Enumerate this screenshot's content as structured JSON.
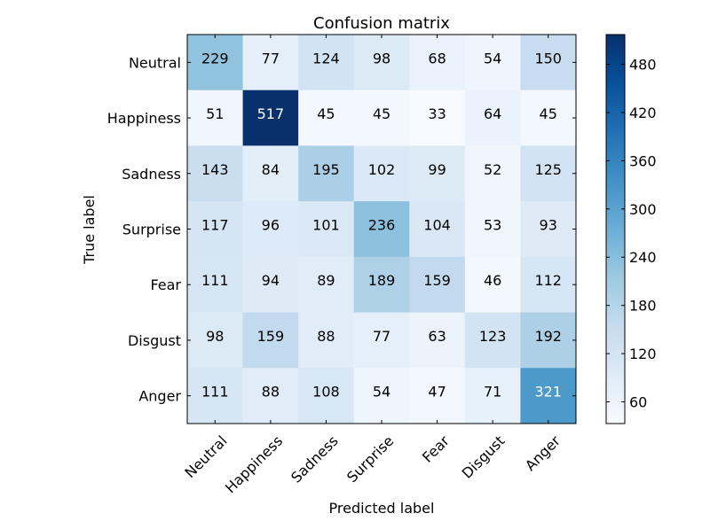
{
  "chart_data": {
    "type": "heatmap",
    "title": "Confusion matrix",
    "xlabel": "Predicted label",
    "ylabel": "True label",
    "x_categories": [
      "Neutral",
      "Happiness",
      "Sadness",
      "Surprise",
      "Fear",
      "Disgust",
      "Anger"
    ],
    "y_categories": [
      "Neutral",
      "Happiness",
      "Sadness",
      "Surprise",
      "Fear",
      "Disgust",
      "Anger"
    ],
    "values": [
      [
        229,
        77,
        124,
        98,
        68,
        54,
        150
      ],
      [
        51,
        517,
        45,
        45,
        33,
        64,
        45
      ],
      [
        143,
        84,
        195,
        102,
        99,
        52,
        125
      ],
      [
        117,
        96,
        101,
        236,
        104,
        53,
        93
      ],
      [
        111,
        94,
        89,
        189,
        159,
        46,
        112
      ],
      [
        98,
        159,
        88,
        77,
        63,
        123,
        192
      ],
      [
        111,
        88,
        108,
        54,
        47,
        71,
        321
      ]
    ],
    "colormap": "Blues",
    "color_range": [
      33,
      517
    ],
    "colorbar_ticks": [
      60,
      120,
      180,
      240,
      300,
      360,
      420,
      480
    ]
  }
}
